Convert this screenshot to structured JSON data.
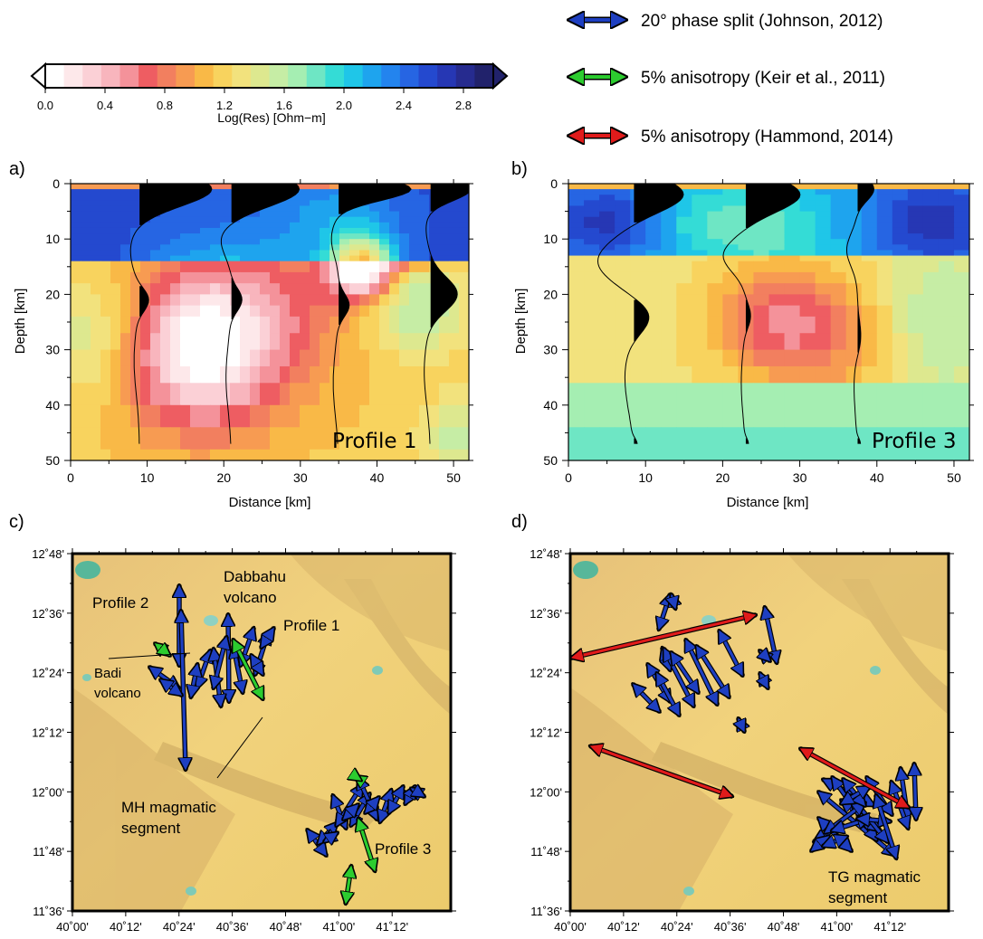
{
  "colorbar": {
    "label": "Log(Res) [Ohm−m]",
    "ticks": [
      "0.0",
      "0.4",
      "0.8",
      "1.2",
      "1.6",
      "2.0",
      "2.4",
      "2.8"
    ],
    "colors": [
      "#ffffff",
      "#fde8ea",
      "#fbd0d6",
      "#f8b5bd",
      "#f4929a",
      "#ee5d62",
      "#f27f5f",
      "#f79b52",
      "#f9b947",
      "#f8d35e",
      "#f2e27d",
      "#dde88f",
      "#c6eda5",
      "#a5eeb2",
      "#6ee6c4",
      "#34dcd6",
      "#1fc6e8",
      "#1ea4ee",
      "#2384ee",
      "#2665e3",
      "#2449cf",
      "#2637b4",
      "#262b8f",
      "#21226b"
    ]
  },
  "legend": [
    {
      "label": "20° phase split (Johnson, 2012)",
      "color": "#1e3fc1"
    },
    {
      "label": "5% anisotropy (Keir et al., 2011)",
      "color": "#2ccc2f"
    },
    {
      "label": "5% anisotropy (Hammond, 2014)",
      "color": "#e01b1b"
    }
  ],
  "panels": {
    "a": {
      "letter": "a)",
      "profile_label": "Profile 1"
    },
    "b": {
      "letter": "b)",
      "profile_label": "Profile 3"
    },
    "c": {
      "letter": "c)"
    },
    "d": {
      "letter": "d)"
    }
  },
  "sections": {
    "xlabel": "Distance [km]",
    "ylabel": "Depth [km]",
    "xticks": [
      "0",
      "10",
      "20",
      "30",
      "40",
      "50"
    ],
    "yticks": [
      "0",
      "10",
      "20",
      "30",
      "40",
      "50"
    ]
  },
  "maps": {
    "lat_ticks": [
      "12˚48'",
      "12˚36'",
      "12˚24'",
      "12˚12'",
      "12˚00'",
      "11˚48'",
      "11˚36'"
    ],
    "lon_ticks": [
      "40˚00'",
      "40˚12'",
      "40˚24'",
      "40˚36'",
      "40˚48'",
      "41˚00'",
      "41˚12'"
    ],
    "c_labels": {
      "profile2": "Profile 2",
      "dabbahu1": "Dabbahu",
      "dabbahu2": "volcano",
      "profile1": "Profile 1",
      "badi1": "Badi",
      "badi2": "volcano",
      "mh1": "MH magmatic",
      "mh2": "segment",
      "profile3": "Profile 3"
    },
    "d_labels": {
      "tg1": "TG magmatic",
      "tg2": "segment"
    }
  },
  "chart_data": [
    {
      "type": "heatmap",
      "panel": "a",
      "title": "",
      "xlabel": "Distance [km]",
      "ylabel": "Depth [km]",
      "xlim": [
        0,
        52
      ],
      "ylim": [
        50,
        0
      ],
      "colorbar_range": [
        0.0,
        3.0
      ],
      "profile_label": "Profile 1",
      "description_values": {
        "upper_conductive_anomaly_logres": 0.2,
        "upper_resistive_layer_logres": 2.6
      },
      "phase_curve_offsets_km": [
        9,
        21,
        35,
        47
      ]
    },
    {
      "type": "heatmap",
      "panel": "b",
      "title": "",
      "xlabel": "Distance [km]",
      "ylabel": "Depth [km]",
      "xlim": [
        0,
        52
      ],
      "ylim": [
        50,
        0
      ],
      "colorbar_range": [
        0.0,
        3.0
      ],
      "profile_label": "Profile 3",
      "phase_curve_offsets_km": [
        8,
        23,
        37
      ]
    }
  ]
}
